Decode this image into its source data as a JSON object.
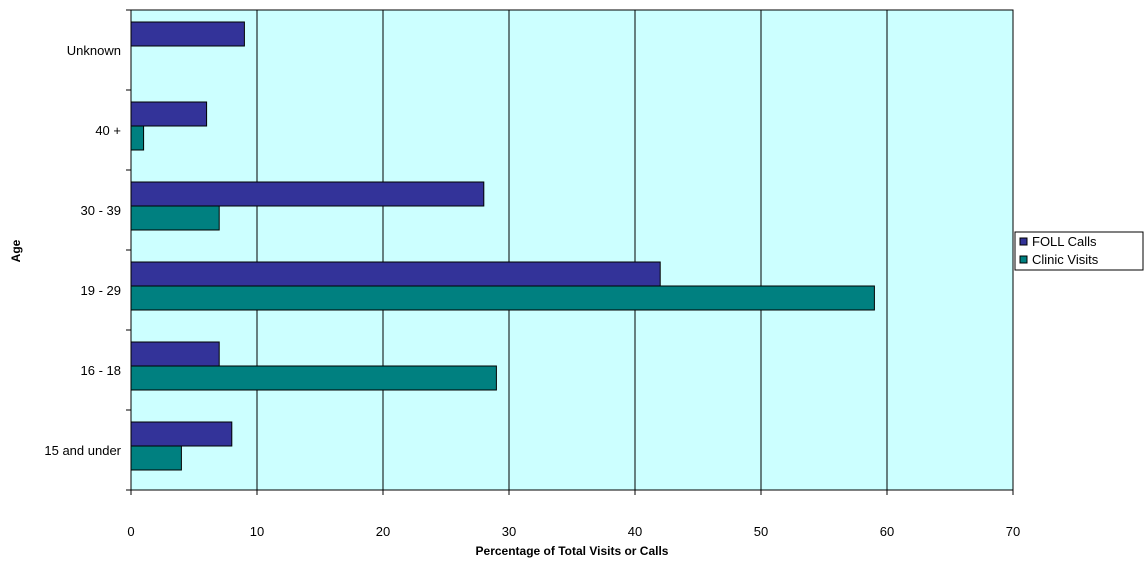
{
  "chart_data": {
    "type": "bar",
    "orientation": "horizontal",
    "categories": [
      "Unknown",
      "40 +",
      "30 - 39",
      "19 - 29",
      "16 - 18",
      "15 and under"
    ],
    "series": [
      {
        "name": "FOLL Calls",
        "color": "#333399",
        "values": [
          9,
          6,
          28,
          42,
          7,
          8
        ]
      },
      {
        "name": "Clinic Visits",
        "color": "#008080",
        "values": [
          0,
          1,
          7,
          59,
          29,
          4
        ]
      }
    ],
    "xlabel": "Percentage of Total Visits or Calls",
    "ylabel": "Age",
    "xlim": [
      0,
      70
    ],
    "xticks": [
      0,
      10,
      20,
      30,
      40,
      50,
      60,
      70
    ],
    "plot_background": "#ccffff",
    "grid": "vertical",
    "legend_position": "right"
  }
}
